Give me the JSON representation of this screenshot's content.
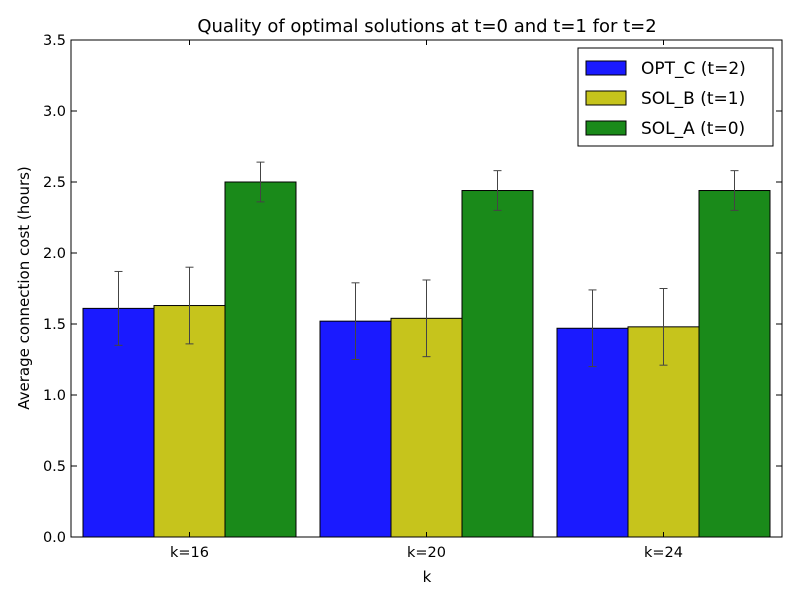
{
  "chart_data": {
    "type": "bar",
    "title": "Quality of optimal solutions at t=0 and t=1 for t=2",
    "xlabel": "k",
    "ylabel": "Average connection cost (hours)",
    "categories": [
      "k=16",
      "k=20",
      "k=24"
    ],
    "ylim": [
      0,
      3.5
    ],
    "yticks": [
      "0.0",
      "0.5",
      "1.0",
      "1.5",
      "2.0",
      "2.5",
      "3.0",
      "3.5"
    ],
    "grid": false,
    "legend_position": "top-right",
    "series": [
      {
        "name": "OPT_C (t=2)",
        "color": "#1a1aff",
        "values": [
          1.61,
          1.52,
          1.47
        ],
        "errors": [
          0.26,
          0.27,
          0.27
        ]
      },
      {
        "name": "SOL_B (t=1)",
        "color": "#c6c41c",
        "values": [
          1.63,
          1.54,
          1.48
        ],
        "errors": [
          0.27,
          0.27,
          0.27
        ]
      },
      {
        "name": "SOL_A (t=0)",
        "color": "#1a8a1a",
        "values": [
          2.5,
          2.44,
          2.44
        ],
        "errors": [
          0.14,
          0.14,
          0.14
        ]
      }
    ]
  }
}
